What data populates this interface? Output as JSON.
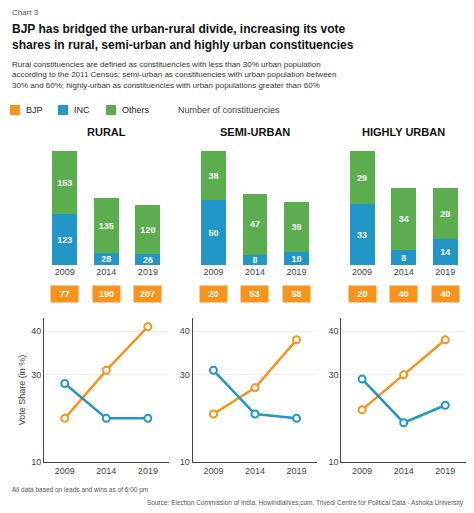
{
  "title": "BJP has bridged the urban-rural divide, increasing its vote\nshares in rural, semi-urban and highly urban constituencies",
  "subtitle": "Rural constituencies are defined as constituencies with less than 30% urban population\naccording to the 2011 Census; semi-urban as constituencies with urban population between\n30% and 60%; highly-urban as constituencies with urban populations greater than 60%",
  "annotations": [
    "Chart 3",
    "Number of constituencies",
    "All data based on leads and wins as of 6:00 pm",
    "Source: Election Commission of India, Howindialives.com, Trivedi Centre for Political Data - Ashoka University"
  ],
  "legend": "top left",
  "chart_data": [
    {
      "type": "bar",
      "title": "RURAL",
      "categories": [
        "2009",
        "2014",
        "2019"
      ],
      "stacked": true,
      "data_labels": true,
      "tick_labels": "x",
      "ylim": [
        0,
        298.08
      ],
      "series": [
        {
          "name": "BJP",
          "type": "label",
          "color": "#F7941D",
          "values": [
            77,
            190,
            207
          ]
        },
        {
          "name": "INC",
          "color": "#2196C7",
          "values": [
            123,
            28,
            26
          ]
        },
        {
          "name": "Others",
          "color": "#5BAD50",
          "values": [
            153,
            135,
            120
          ]
        }
      ]
    },
    {
      "type": "bar",
      "title": "SEMI-URBAN",
      "categories": [
        "2009",
        "2014",
        "2019"
      ],
      "stacked": true,
      "data_labels": true,
      "tick_labels": "x",
      "ylim": [
        0,
        95.04
      ],
      "series": [
        {
          "name": "BJP",
          "type": "label",
          "color": "#F7941D",
          "values": [
            20,
            53,
            58
          ]
        },
        {
          "name": "INC",
          "color": "#2196C7",
          "values": [
            50,
            8,
            10
          ]
        },
        {
          "name": "Others",
          "color": "#5BAD50",
          "values": [
            38,
            47,
            39
          ]
        }
      ]
    },
    {
      "type": "bar",
      "title": "HIGHLY URBAN",
      "categories": [
        "2009",
        "2014",
        "2019"
      ],
      "stacked": true,
      "data_labels": true,
      "tick_labels": "x",
      "ylim": [
        0,
        66.96
      ],
      "series": [
        {
          "name": "BJP",
          "type": "label",
          "color": "#F7941D",
          "values": [
            20,
            40,
            40
          ]
        },
        {
          "name": "INC",
          "color": "#2196C7",
          "values": [
            33,
            8,
            14
          ]
        },
        {
          "name": "Others",
          "color": "#5BAD50",
          "values": [
            29,
            34,
            28
          ]
        }
      ]
    },
    {
      "type": "line",
      "ylabel": "Vote Share (in %)",
      "x": [
        2009,
        2014,
        2019
      ],
      "xlim": [
        2006.5,
        2021.5
      ],
      "xticks": [
        2009,
        2014,
        2019
      ],
      "ylim": [
        10,
        43
      ],
      "yticks": [
        10,
        30,
        40
      ],
      "grid": true,
      "marker": "circle",
      "series": [
        {
          "name": "BJP",
          "color": "#F7941D",
          "values": [
            20,
            31,
            41
          ]
        },
        {
          "name": "INC",
          "color": "#2196C7",
          "values": [
            28,
            20,
            20
          ]
        }
      ]
    },
    {
      "type": "line",
      "x": [
        2009,
        2014,
        2019
      ],
      "xlim": [
        2006.5,
        2021.5
      ],
      "xticks": [
        2009,
        2014,
        2019
      ],
      "ylim": [
        10,
        43
      ],
      "yticks": [
        10,
        30,
        40
      ],
      "grid": true,
      "marker": "circle",
      "series": [
        {
          "name": "BJP",
          "color": "#F7941D",
          "values": [
            21,
            27,
            38
          ]
        },
        {
          "name": "INC",
          "color": "#2196C7",
          "values": [
            31,
            21,
            20
          ]
        }
      ]
    },
    {
      "type": "line",
      "x": [
        2009,
        2014,
        2019
      ],
      "xlim": [
        2006.5,
        2021.5
      ],
      "xticks": [
        2009,
        2014,
        2019
      ],
      "ylim": [
        10,
        43
      ],
      "yticks": [
        10,
        30,
        40
      ],
      "grid": true,
      "marker": "circle",
      "series": [
        {
          "name": "BJP",
          "color": "#F7941D",
          "values": [
            22,
            30,
            38
          ]
        },
        {
          "name": "INC",
          "color": "#2196C7",
          "values": [
            29,
            19,
            23
          ]
        }
      ]
    }
  ]
}
